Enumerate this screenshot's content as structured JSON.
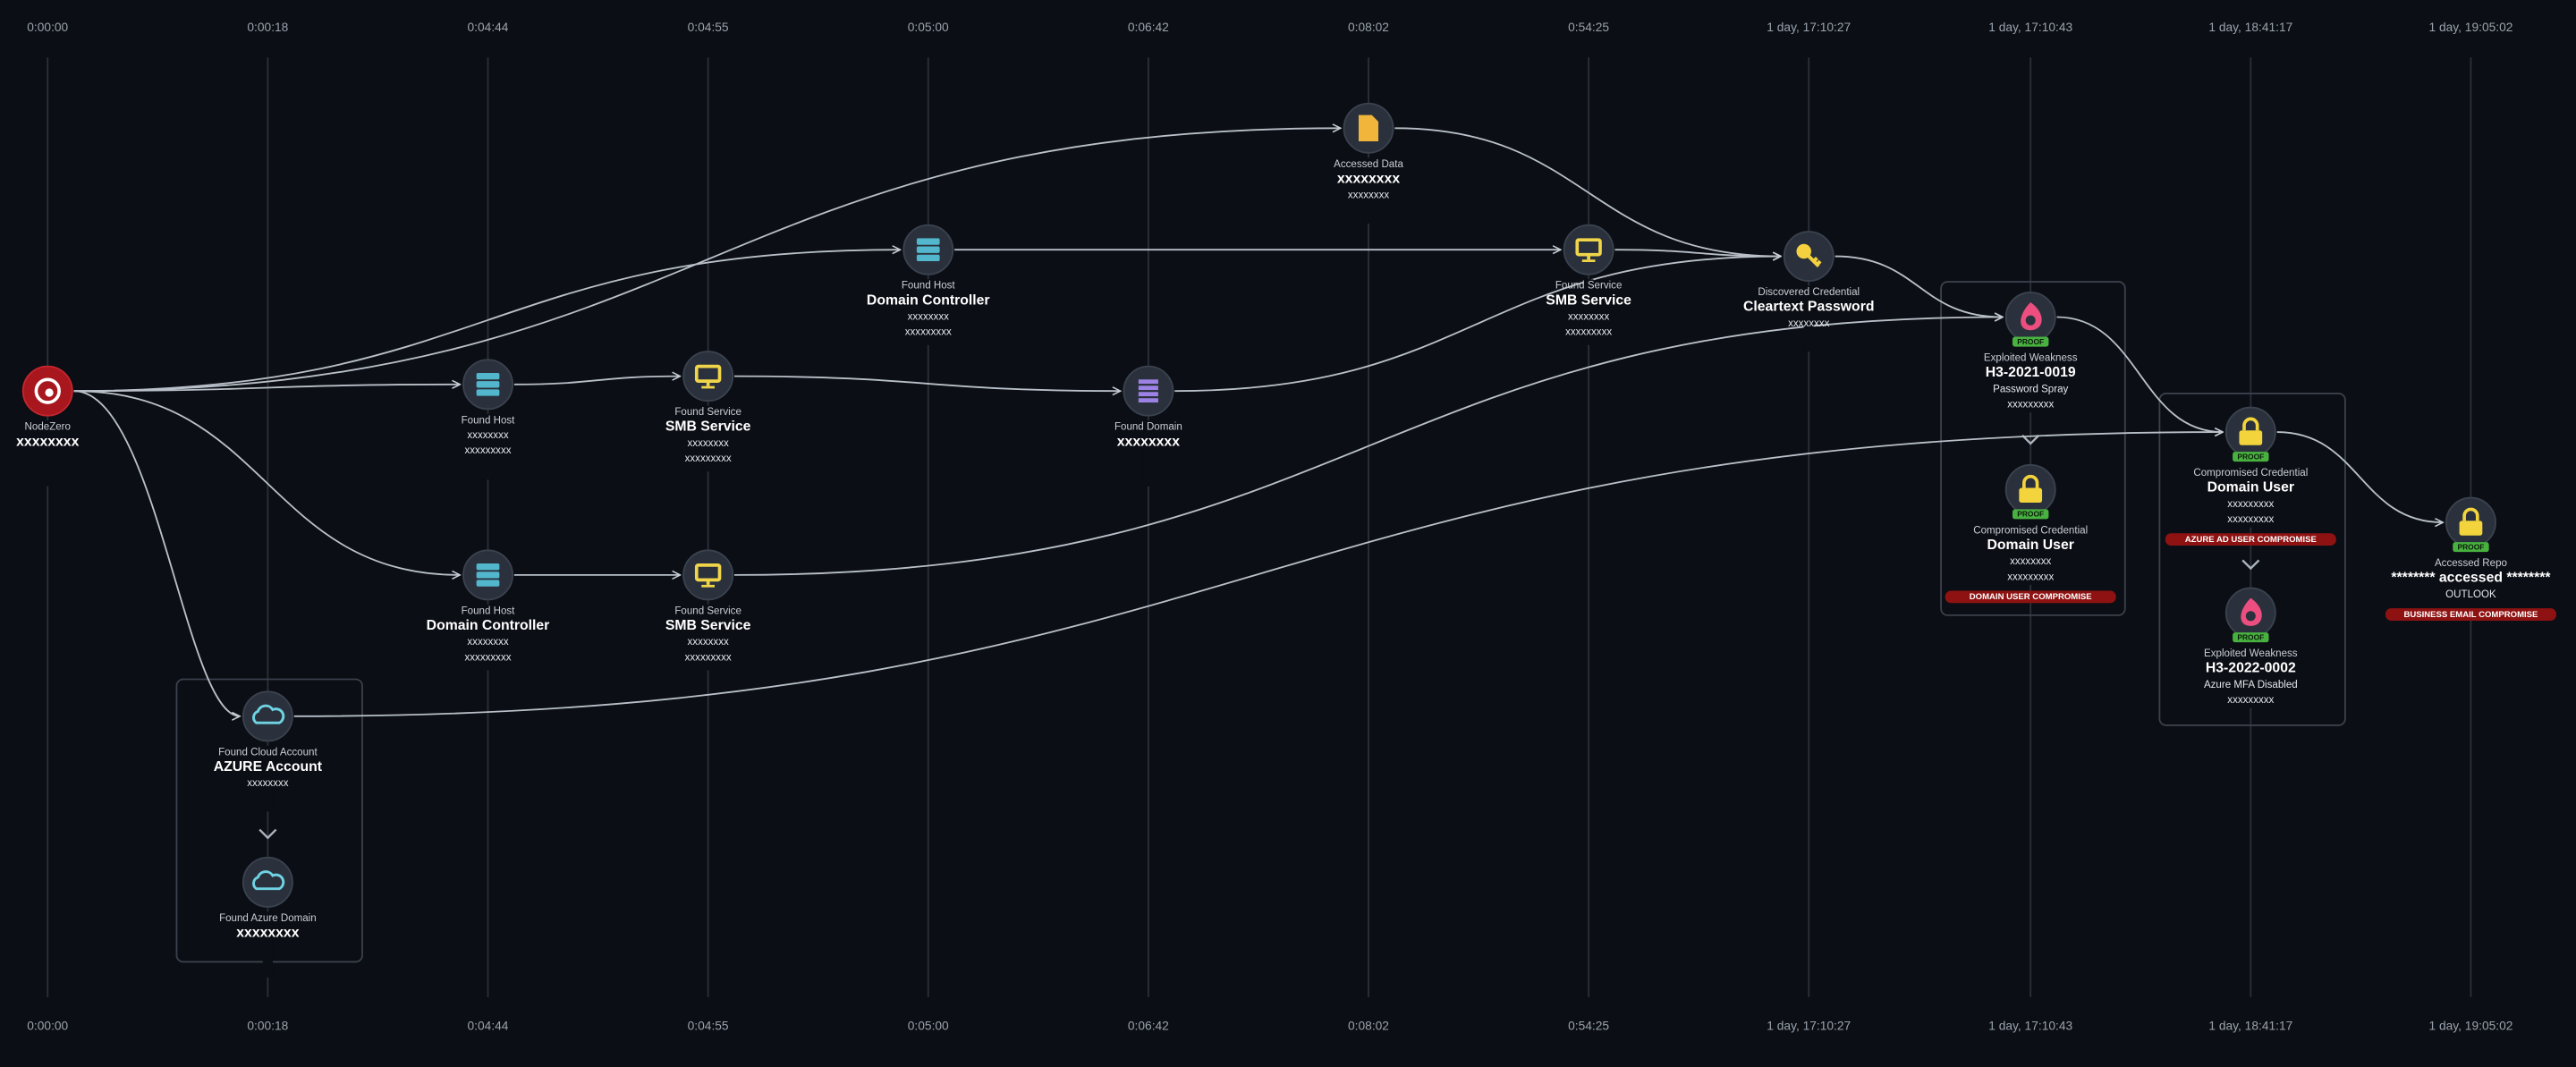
{
  "timeline": {
    "ticks": [
      "0:00:00",
      "0:00:18",
      "0:04:44",
      "0:04:55",
      "0:05:00",
      "0:06:42",
      "0:08:02",
      "0:54:25",
      "1 day, 17:10:27",
      "1 day, 17:10:43",
      "1 day, 18:41:17",
      "1 day, 19:05:02"
    ]
  },
  "nodes": [
    {
      "kind": "NodeZero",
      "title": "xxxxxxxx"
    },
    {
      "kind": "Found Host",
      "lines": [
        "xxxxxxxx",
        "xxxxxxxxx"
      ]
    },
    {
      "kind": "Found Service",
      "title": "SMB Service",
      "lines": [
        "xxxxxxxx",
        "xxxxxxxxx"
      ]
    },
    {
      "kind": "Found Domain",
      "title": "xxxxxxxx"
    },
    {
      "kind": "Found Host",
      "title": "Domain Controller",
      "lines": [
        "xxxxxxxx",
        "xxxxxxxxx"
      ]
    },
    {
      "kind": "Accessed Data",
      "title": "xxxxxxxx",
      "lines": [
        "xxxxxxxx"
      ]
    },
    {
      "kind": "Found Service",
      "title": "SMB Service",
      "lines": [
        "xxxxxxxx",
        "xxxxxxxxx"
      ]
    },
    {
      "kind": "Discovered Credential",
      "title": "Cleartext Password",
      "lines": [
        "xxxxxxxx"
      ]
    },
    {
      "kind": "Exploited Weakness",
      "title": "H3-2021-0019",
      "lines": [
        "Password Spray",
        "xxxxxxxxx"
      ],
      "proof": "PROOF"
    },
    {
      "kind": "Compromised Credential",
      "title": "Domain User",
      "lines": [
        "xxxxxxxx",
        "xxxxxxxxx"
      ],
      "proof": "PROOF",
      "tag": "DOMAIN USER COMPROMISE"
    },
    {
      "kind": "Compromised Credential",
      "title": "Domain User",
      "lines": [
        "xxxxxxxxx",
        "xxxxxxxxx"
      ],
      "proof": "PROOF",
      "tag": "AZURE AD USER COMPROMISE"
    },
    {
      "kind": "Exploited Weakness",
      "title": "H3-2022-0002",
      "lines": [
        "Azure MFA Disabled",
        "xxxxxxxxx"
      ],
      "proof": "PROOF"
    },
    {
      "kind": "Accessed Repo",
      "title": "******** accessed ********",
      "lines": [
        "OUTLOOK"
      ],
      "proof": "PROOF",
      "tag": "BUSINESS EMAIL COMPROMISE"
    },
    {
      "kind": "Found Host",
      "title": "Domain Controller",
      "lines": [
        "xxxxxxxx",
        "xxxxxxxxx"
      ]
    },
    {
      "kind": "Found Service",
      "title": "SMB Service",
      "lines": [
        "xxxxxxxx",
        "xxxxxxxxx"
      ]
    },
    {
      "kind": "Found Cloud Account",
      "title": "AZURE Account",
      "lines": [
        "xxxxxxxx"
      ]
    },
    {
      "kind": "Found Azure Domain",
      "title": "xxxxxxxx"
    }
  ]
}
